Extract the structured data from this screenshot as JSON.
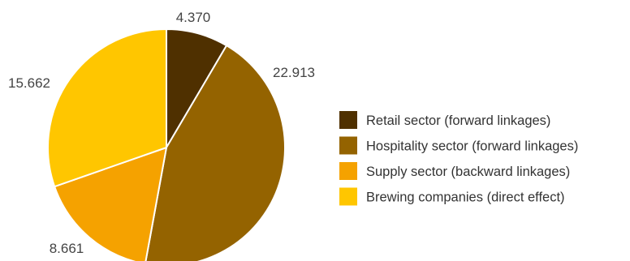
{
  "chart_data": {
    "type": "pie",
    "slices": [
      {
        "label": "Retail sector (forward linkages)",
        "value": 4.37,
        "value_label": "4.370",
        "color": "#4f3000"
      },
      {
        "label": "Hospitality sector (forward linkages)",
        "value": 22.913,
        "value_label": "22.913",
        "color": "#946300"
      },
      {
        "label": "Supply sector (backward linkages)",
        "value": 8.661,
        "value_label": "8.661",
        "color": "#f5a200"
      },
      {
        "label": "Brewing companies (direct effect)",
        "value": 15.662,
        "value_label": "15.662",
        "color": "#ffc600"
      }
    ],
    "start_direction": "12 o'clock",
    "direction": "clockwise",
    "legend_position": "right",
    "slice_border_color": "#ffffff"
  }
}
